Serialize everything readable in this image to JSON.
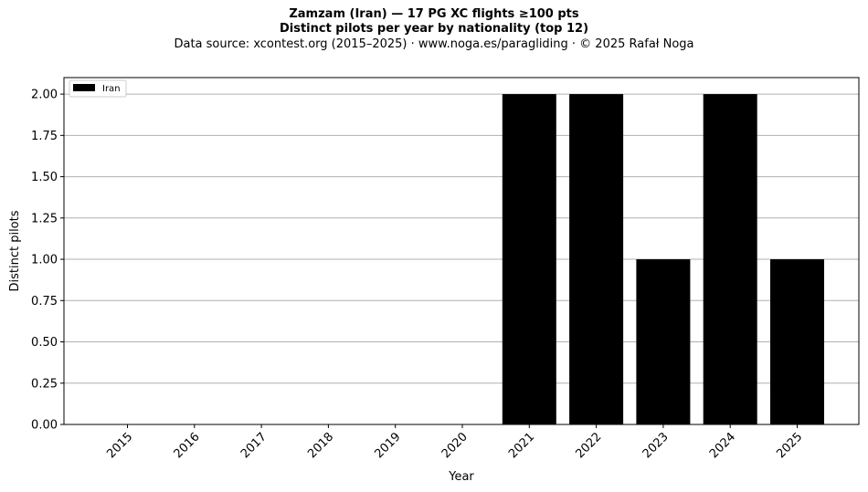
{
  "title_lines": [
    "Zamzam (Iran)  —  17 PG XC flights ≥100 pts",
    "Distinct pilots per year by nationality (top 12)",
    "Data source: xcontest.org (2015–2025)  ·  www.noga.es/paragliding  ·  © 2025 Rafał Noga"
  ],
  "chart_data": {
    "type": "bar",
    "title": "Zamzam (Iran)  —  17 PG XC flights ≥100 pts",
    "subtitle": "Distinct pilots per year by nationality (top 12)",
    "xlabel": "Year",
    "ylabel": "Distinct pilots",
    "categories": [
      "2015",
      "2016",
      "2017",
      "2018",
      "2019",
      "2020",
      "2021",
      "2022",
      "2023",
      "2024",
      "2025"
    ],
    "series": [
      {
        "name": "Iran",
        "values": [
          0,
          0,
          0,
          0,
          0,
          0,
          2,
          2,
          1,
          2,
          1
        ],
        "color": "#000000"
      }
    ],
    "ylim": [
      0,
      2.1
    ],
    "yticks": [
      "0.00",
      "0.25",
      "0.50",
      "0.75",
      "1.00",
      "1.25",
      "1.50",
      "1.75",
      "2.00"
    ],
    "grid": "y",
    "legend": "top-left"
  }
}
